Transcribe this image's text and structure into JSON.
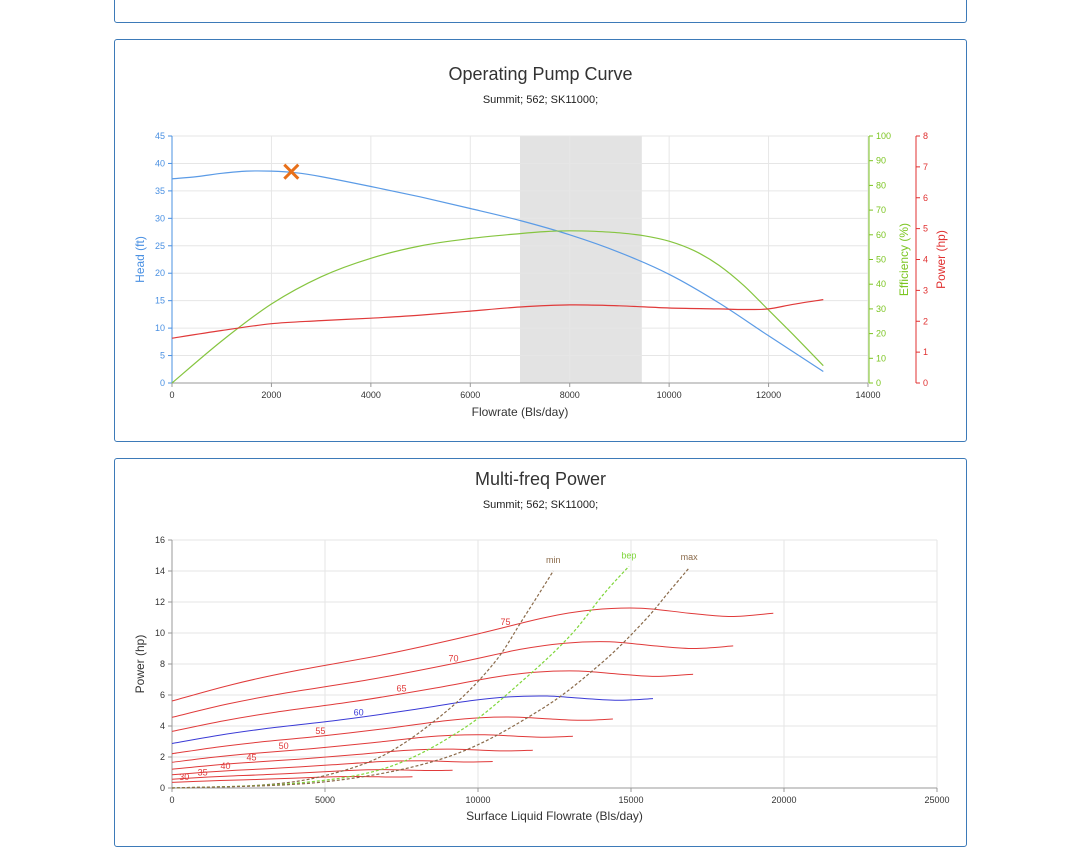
{
  "chart_data": [
    {
      "type": "line",
      "title": "Operating Pump Curve",
      "subtitle": "Summit; 562; SK11000;",
      "xlabel": "Flowrate (Bls/day)",
      "xlim": [
        0,
        14000
      ],
      "xticks": [
        0,
        2000,
        4000,
        6000,
        8000,
        10000,
        12000,
        14000
      ],
      "grid": true,
      "axes": [
        {
          "id": "head",
          "label": "Head (ft)",
          "side": "left",
          "lim": [
            0,
            45
          ],
          "ticks": [
            0,
            5,
            10,
            15,
            20,
            25,
            30,
            35,
            40,
            45
          ],
          "color": "#4a90e2"
        },
        {
          "id": "eff",
          "label": "Efficiency (%)",
          "side": "right",
          "lim": [
            0,
            100
          ],
          "ticks": [
            0,
            10,
            20,
            30,
            40,
            50,
            60,
            70,
            80,
            90,
            100
          ],
          "color": "#7cc522"
        },
        {
          "id": "pow",
          "label": "Power (hp)",
          "side": "right",
          "lim": [
            0,
            8
          ],
          "ticks": [
            0,
            1,
            2,
            3,
            4,
            5,
            6,
            7,
            8
          ],
          "color": "#e03030"
        }
      ],
      "recommended_range": [
        7000,
        9450
      ],
      "series": [
        {
          "axis": "head",
          "color": "#5b9be6",
          "x": [
            0,
            500,
            1000,
            1500,
            2000,
            2500,
            3000,
            4000,
            5000,
            6000,
            7000,
            8000,
            9000,
            10000,
            11000,
            12000,
            13100
          ],
          "y": [
            37.2,
            37.6,
            38.2,
            38.6,
            38.6,
            38.3,
            37.6,
            35.8,
            33.9,
            31.8,
            29.6,
            27.0,
            23.8,
            19.8,
            14.6,
            8.6,
            2.1
          ]
        },
        {
          "axis": "eff",
          "color": "#86c540",
          "x": [
            0,
            1000,
            2000,
            3000,
            4000,
            5000,
            6000,
            7000,
            7500,
            8000,
            8500,
            9000,
            9500,
            10000,
            10500,
            11000,
            11500,
            12000,
            12500,
            13100
          ],
          "y": [
            0,
            17,
            32,
            43,
            50.5,
            55.5,
            58.5,
            60.5,
            61.3,
            61.6,
            61.4,
            60.8,
            59.6,
            57.4,
            53.6,
            47.7,
            39.5,
            29.5,
            19.5,
            7
          ]
        },
        {
          "axis": "pow",
          "color": "#e03a3a",
          "x": [
            0,
            1000,
            2000,
            3000,
            4000,
            5000,
            6000,
            7000,
            8000,
            9000,
            10000,
            11000,
            11500,
            12000,
            12500,
            13100
          ],
          "y": [
            1.45,
            1.7,
            1.92,
            2.02,
            2.1,
            2.2,
            2.33,
            2.46,
            2.53,
            2.5,
            2.43,
            2.4,
            2.38,
            2.4,
            2.55,
            2.7
          ]
        }
      ],
      "operating_point": {
        "x": 2400,
        "y": 38.5,
        "axis": "head",
        "marker": "x",
        "color": "#e8701a"
      }
    },
    {
      "type": "line",
      "title": "Multi-freq Power",
      "subtitle": "Summit; 562; SK11000;",
      "xlabel": "Surface Liquid Flowrate (Bls/day)",
      "ylabel": "Power (hp)",
      "xlim": [
        0,
        25000
      ],
      "ylim": [
        0,
        16
      ],
      "xticks": [
        0,
        5000,
        10000,
        15000,
        20000,
        25000
      ],
      "yticks": [
        0,
        2,
        4,
        6,
        8,
        10,
        12,
        14,
        16
      ],
      "grid": true,
      "freq_lines": [
        {
          "hz": 30,
          "label": "30",
          "color": "#e03a3a",
          "x_end": 7860,
          "p_start": 0.36,
          "p_end": 0.72,
          "label_x": 400
        },
        {
          "hz": 35,
          "label": "35",
          "color": "#e03a3a",
          "x_end": 9170,
          "p_start": 0.57,
          "p_end": 1.15,
          "label_x": 1000
        },
        {
          "hz": 40,
          "label": "40",
          "color": "#e03a3a",
          "x_end": 10480,
          "p_start": 0.85,
          "p_end": 1.71,
          "label_x": 1750
        },
        {
          "hz": 45,
          "label": "45",
          "color": "#e03a3a",
          "x_end": 11790,
          "p_start": 1.21,
          "p_end": 2.44,
          "label_x": 2600
        },
        {
          "hz": 50,
          "label": "50",
          "color": "#e03a3a",
          "x_end": 13100,
          "p_start": 1.66,
          "p_end": 3.34,
          "label_x": 3650
        },
        {
          "hz": 55,
          "label": "55",
          "color": "#e03a3a",
          "x_end": 14410,
          "p_start": 2.21,
          "p_end": 4.45,
          "label_x": 4850
        },
        {
          "hz": 60,
          "label": "60",
          "color": "#3a3ad6",
          "x_end": 15720,
          "p_start": 2.87,
          "p_end": 5.77,
          "label_x": 6100
        },
        {
          "hz": 65,
          "label": "65",
          "color": "#e03a3a",
          "x_end": 17030,
          "p_start": 3.65,
          "p_end": 7.34,
          "label_x": 7500
        },
        {
          "hz": 70,
          "label": "70",
          "color": "#e03a3a",
          "x_end": 18340,
          "p_start": 4.56,
          "p_end": 9.17,
          "label_x": 9200
        },
        {
          "hz": 75,
          "label": "75",
          "color": "#e03a3a",
          "x_end": 19650,
          "p_start": 5.61,
          "p_end": 11.28,
          "label_x": 10900
        }
      ],
      "envelope_lines": [
        {
          "label": "min",
          "color": "#8a6a4a",
          "x": [
            0,
            3000,
            5000,
            7000,
            9000,
            10500,
            11500,
            12460
          ],
          "y": [
            0,
            0.2,
            0.8,
            2.2,
            5.0,
            8.0,
            11.0,
            14.0
          ]
        },
        {
          "label": "bep",
          "color": "#7fd63a",
          "x": [
            0,
            4000,
            7000,
            9500,
            11500,
            13000,
            14100,
            14930
          ],
          "y": [
            0,
            0.3,
            1.3,
            3.8,
            7.0,
            9.8,
            12.5,
            14.3
          ]
        },
        {
          "label": "max",
          "color": "#8a6a4a",
          "x": [
            0,
            5000,
            9000,
            12000,
            14000,
            15400,
            16300,
            16900
          ],
          "y": [
            0,
            0.4,
            2.0,
            5.0,
            8.0,
            10.7,
            12.8,
            14.2
          ]
        }
      ]
    }
  ]
}
